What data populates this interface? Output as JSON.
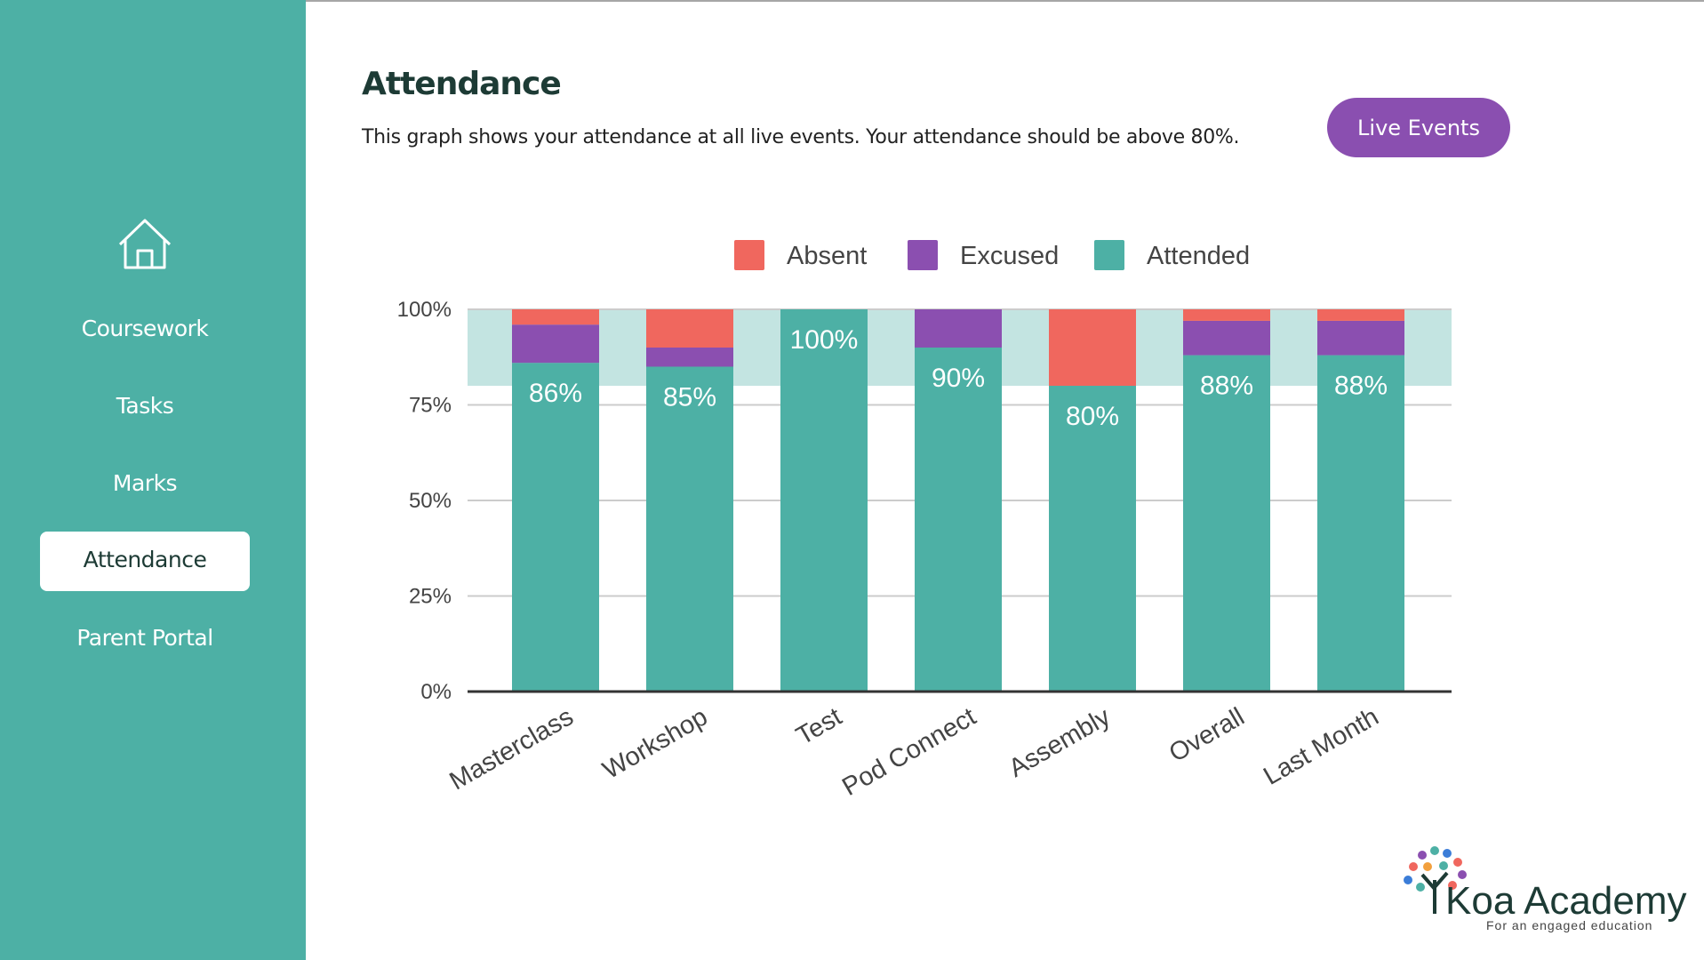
{
  "sidebar": {
    "nav": [
      "Coursework",
      "Tasks",
      "Marks",
      "Attendance",
      "Parent Portal"
    ]
  },
  "header": {
    "title": "Attendance",
    "description": "This graph shows your attendance at all live events. Your attendance should be above 80%.",
    "button": "Live Events"
  },
  "logo": {
    "name": "Koa Academy",
    "tagline": "For an engaged education"
  },
  "chart_data": {
    "type": "stacked_bar",
    "categories": [
      "Masterclass",
      "Workshop",
      "Test",
      "Pod Connect",
      "Assembly",
      "Overall",
      "Last Month"
    ],
    "series": [
      {
        "name": "Absent",
        "color": "#f0675e",
        "values": [
          4,
          10,
          0,
          0,
          20,
          3,
          3
        ]
      },
      {
        "name": "Excused",
        "color": "#8b4fb0",
        "values": [
          10,
          5,
          0,
          10,
          0,
          9,
          9
        ]
      },
      {
        "name": "Attended",
        "color": "#4db0a5",
        "values": [
          86,
          85,
          100,
          90,
          80,
          88,
          88
        ],
        "value_labels": [
          "86%",
          "85%",
          "100%",
          "90%",
          "80%",
          "88%",
          "88%"
        ]
      }
    ],
    "target_band": [
      80,
      100
    ],
    "target_band_color": "#c3e4e1",
    "ylim": [
      0,
      100
    ],
    "yticks": [
      {
        "value": 0,
        "label": "0%"
      },
      {
        "value": 25,
        "label": "25%"
      },
      {
        "value": 50,
        "label": "50%"
      },
      {
        "value": 75,
        "label": "75%"
      },
      {
        "value": 100,
        "label": "100%"
      }
    ],
    "grid": true,
    "legend": "top"
  }
}
